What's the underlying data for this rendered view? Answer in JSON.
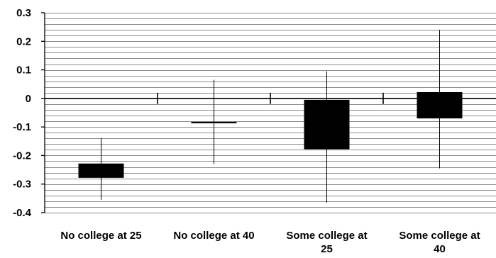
{
  "chart_data": {
    "type": "box",
    "title": "",
    "xlabel": "",
    "ylabel": "",
    "ylim": [
      -0.4,
      0.3
    ],
    "major_ticks": [
      0.3,
      0.2,
      0.1,
      0,
      -0.1,
      -0.2,
      -0.3,
      -0.4
    ],
    "tick_labels": [
      "0.3",
      "0.2",
      "0.1",
      "0",
      "-0.1",
      "-0.2",
      "-0.3",
      "-0.4"
    ],
    "minor_gridlines_per_major": 5,
    "grid": true,
    "zero_line": true,
    "categories": [
      {
        "label_lines": [
          "No college at 25"
        ],
        "low": -0.355,
        "box_low": -0.278,
        "box_high": -0.228,
        "high": -0.138
      },
      {
        "label_lines": [
          "No college at 40"
        ],
        "low": -0.23,
        "box_low": -0.082,
        "box_high": -0.082,
        "high": 0.065
      },
      {
        "label_lines": [
          "Some college at",
          "25"
        ],
        "low": -0.365,
        "box_low": -0.178,
        "box_high": -0.005,
        "high": 0.095
      },
      {
        "label_lines": [
          "Some college at",
          "40"
        ],
        "low": -0.245,
        "box_low": -0.07,
        "box_high": 0.022,
        "high": 0.24
      }
    ],
    "colors": {
      "box": "#000000",
      "grid": "#8c8c8c",
      "axis": "#000000"
    }
  }
}
